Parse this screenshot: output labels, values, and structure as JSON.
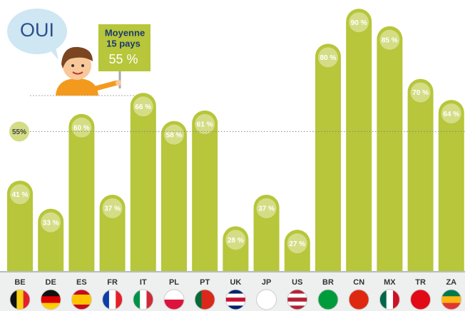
{
  "chart_data": {
    "type": "bar",
    "title": "OUI",
    "categories": [
      "BE",
      "DE",
      "ES",
      "FR",
      "IT",
      "PL",
      "PT",
      "UK",
      "JP",
      "US",
      "BR",
      "CN",
      "MX",
      "TR",
      "ZA"
    ],
    "values": [
      41,
      33,
      60,
      37,
      66,
      58,
      61,
      28,
      37,
      27,
      80,
      90,
      85,
      70,
      64
    ],
    "value_labels": [
      "41 %",
      "33 %",
      "60 %",
      "37 %",
      "66 %",
      "58 %",
      "61 %",
      "28 %",
      "37 %",
      "27 %",
      "80 %",
      "90 %",
      "85 %",
      "70 %",
      "64 %"
    ],
    "color": "#b7c63a",
    "average": {
      "value": 55,
      "label": "55%"
    },
    "average_sign": [
      "Moyenne",
      "15 pays",
      "55 %"
    ]
  }
}
